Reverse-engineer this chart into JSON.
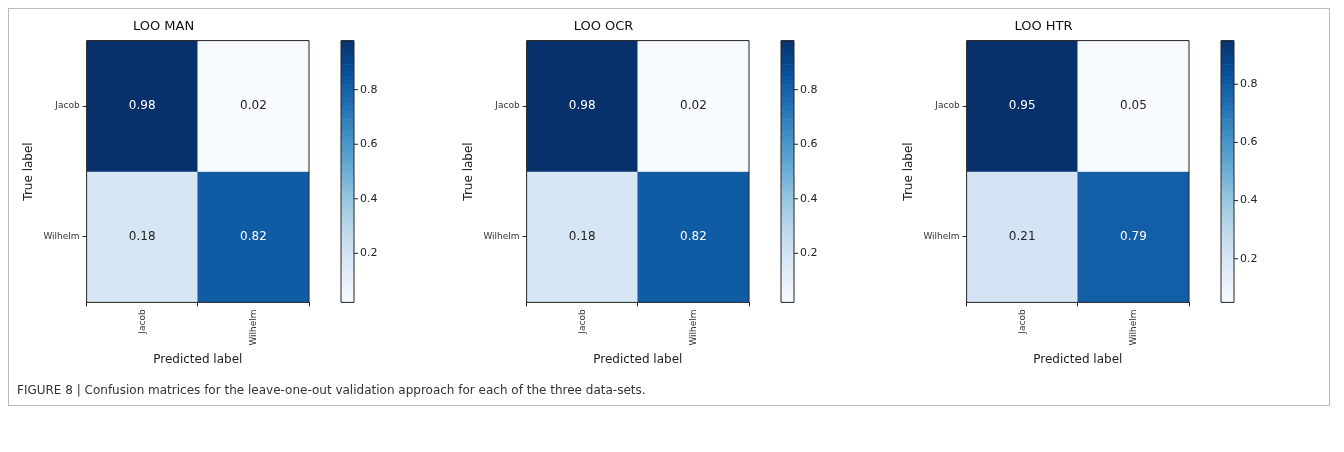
{
  "chart_data": [
    {
      "type": "heatmap",
      "title": "LOO MAN",
      "xlabel": "Predicted label",
      "ylabel": "True label",
      "categories": [
        "Jacob",
        "Wilhelm"
      ],
      "y_categories": [
        "Jacob",
        "Wilhelm"
      ],
      "cells": [
        [
          0.98,
          0.02
        ],
        [
          0.18,
          0.82
        ]
      ],
      "clim": [
        0.02,
        0.98
      ],
      "cticks": [
        0.2,
        0.4,
        0.6,
        0.8
      ],
      "data_labels": true
    },
    {
      "type": "heatmap",
      "title": "LOO OCR",
      "xlabel": "Predicted label",
      "ylabel": "True label",
      "categories": [
        "Jacob",
        "Wilhelm"
      ],
      "y_categories": [
        "Jacob",
        "Wilhelm"
      ],
      "cells": [
        [
          0.98,
          0.02
        ],
        [
          0.18,
          0.82
        ]
      ],
      "clim": [
        0.02,
        0.98
      ],
      "cticks": [
        0.2,
        0.4,
        0.6,
        0.8
      ],
      "data_labels": true
    },
    {
      "type": "heatmap",
      "title": "LOO HTR",
      "xlabel": "Predicted label",
      "ylabel": "True label",
      "categories": [
        "Jacob",
        "Wilhelm"
      ],
      "y_categories": [
        "Jacob",
        "Wilhelm"
      ],
      "cells": [
        [
          0.95,
          0.05
        ],
        [
          0.21,
          0.79
        ]
      ],
      "clim": [
        0.05,
        0.95
      ],
      "cticks": [
        0.2,
        0.4,
        0.6,
        0.8
      ],
      "data_labels": true,
      "annotations": [
        "FIGURE 8 | Confusion matrices for the leave-one-out validation approach for each of the three data-sets."
      ]
    }
  ]
}
